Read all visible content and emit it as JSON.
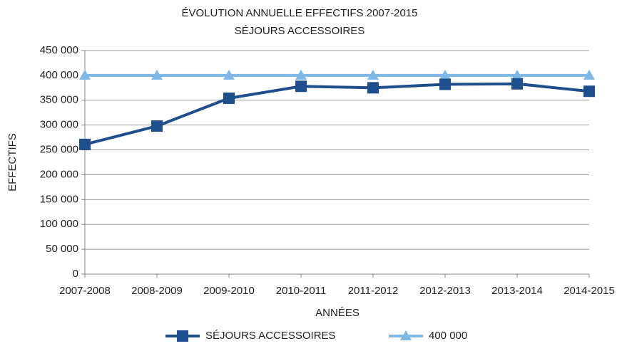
{
  "chart_data": {
    "type": "line",
    "title": "ÉVOLUTION ANNUELLE EFFECTIFS 2007-2015",
    "subtitle": "SÉJOURS ACCESSOIRES",
    "x_label": "ANNÉES",
    "y_label": "EFFECTIFS",
    "categories": [
      "2007-2008",
      "2008-2009",
      "2009-2010",
      "2010-2011",
      "2011-2012",
      "2012-2013",
      "2013-2014",
      "2014-2015"
    ],
    "series": [
      {
        "name": "SÉJOURS ACCESSOIRES",
        "color": "#1f4e8c",
        "marker": "square",
        "values": [
          261000,
          298000,
          354000,
          378000,
          375000,
          382000,
          383000,
          368000
        ]
      },
      {
        "name": "400 000",
        "color": "#7fb8e4",
        "marker": "triangle",
        "values": [
          400000,
          400000,
          400000,
          400000,
          400000,
          400000,
          400000,
          400000
        ]
      }
    ],
    "ylim": [
      0,
      450000
    ],
    "yticks": [
      0,
      {
        "value": 50000,
        "label": "50 000"
      },
      {
        "value": 100000,
        "label": "100 000"
      },
      {
        "value": 150000,
        "label": "150 000"
      },
      {
        "value": 200000,
        "label": "200 000"
      },
      {
        "value": 250000,
        "label": "250 000"
      },
      {
        "value": 300000,
        "label": "300 000"
      },
      {
        "value": 350000,
        "label": "350 000"
      },
      {
        "value": 400000,
        "label": "400 000"
      },
      {
        "value": 450000,
        "label": "450 000"
      }
    ],
    "grid": true,
    "legend": "bottom"
  }
}
